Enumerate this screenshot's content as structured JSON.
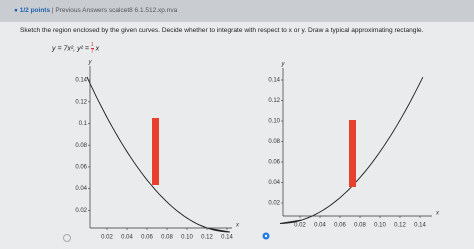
{
  "header": {
    "status": "1/2 points",
    "separator": "|",
    "link": "Previous Answers",
    "problem_id": "scalcet8 6.1.512.xp.nva"
  },
  "instruction": "Sketch the region enclosed by the given curves. Decide whether to integrate with respect to x or y. Draw a typical approximating rectangle.",
  "equation": {
    "part1": "y = 7x², ",
    "part2": "y² = ",
    "numerator": "1",
    "denominator": "7",
    "part3": "x"
  },
  "graphs": [
    {
      "y_label": "y",
      "x_label": "x",
      "yticks": [
        "0.14",
        "0.12",
        "0.1",
        "0.08",
        "0.06",
        "0.04",
        "0.02"
      ],
      "xticks": [
        "0.02",
        "0.04",
        "0.06",
        "0.08",
        "0.10",
        "0.12",
        "0.14"
      ]
    },
    {
      "y_label": "y",
      "x_label": "x",
      "yticks": [
        "0.14",
        "0.12",
        "0.10",
        "0.08",
        "0.06",
        "0.04",
        "0.02"
      ],
      "xticks": [
        "0.02",
        "0.04",
        "0.06",
        "0.08",
        "0.10",
        "0.12",
        "0.14"
      ]
    }
  ]
}
